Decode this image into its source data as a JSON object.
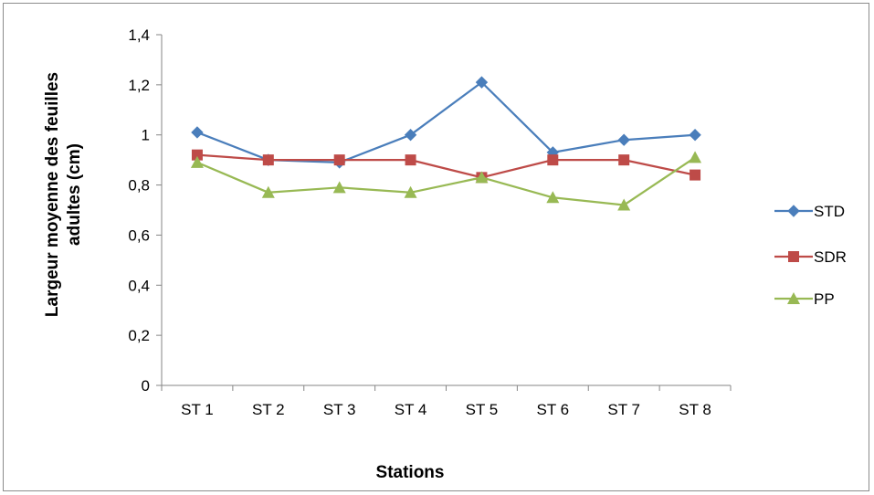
{
  "chart_data": {
    "type": "line",
    "title": "",
    "xlabel": "Stations",
    "ylabel_line1": "Largeur moyenne des  feuilles",
    "ylabel_line2": "adultes  (cm)",
    "categories": [
      "ST 1",
      "ST 2",
      "ST 3",
      "ST 4",
      "ST 5",
      "ST 6",
      "ST 7",
      "ST 8"
    ],
    "ylim": [
      0,
      1.4
    ],
    "yticks": [
      0,
      0.2,
      0.4,
      0.6,
      0.8,
      1,
      1.2,
      1.4
    ],
    "ytick_labels": [
      "0",
      "0,2",
      "0,4",
      "0,6",
      "0,8",
      "1",
      "1,2",
      "1,4"
    ],
    "grid": false,
    "legend_position": "right",
    "series": [
      {
        "name": "STD",
        "color": "#4a7ebb",
        "marker": "diamond",
        "values": [
          1.01,
          0.9,
          0.89,
          1.0,
          1.21,
          0.93,
          0.98,
          1.0
        ]
      },
      {
        "name": "SDR",
        "color": "#be4b48",
        "marker": "square",
        "values": [
          0.92,
          0.9,
          0.9,
          0.9,
          0.83,
          0.9,
          0.9,
          0.84
        ]
      },
      {
        "name": "PP",
        "color": "#98b954",
        "marker": "triangle",
        "values": [
          0.89,
          0.77,
          0.79,
          0.77,
          0.83,
          0.75,
          0.72,
          0.91
        ]
      }
    ]
  }
}
